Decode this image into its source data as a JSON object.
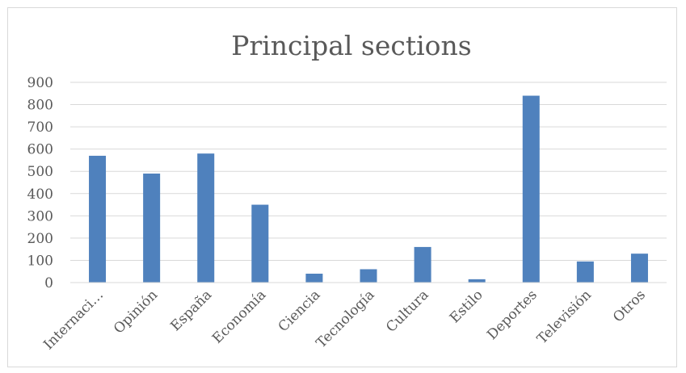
{
  "chart_data": {
    "type": "bar",
    "title": "Principal sections",
    "categories": [
      "Internaci…",
      "Opinión",
      "España",
      "Economía",
      "Ciencia",
      "Tecnología",
      "Cultura",
      "Estilo",
      "Deportes",
      "Televisión",
      "Otros"
    ],
    "values": [
      570,
      490,
      580,
      350,
      40,
      60,
      160,
      15,
      840,
      95,
      130
    ],
    "ylim": [
      0,
      900
    ],
    "yticks": [
      "0",
      "100",
      "200",
      "300",
      "400",
      "500",
      "600",
      "700",
      "800",
      "900"
    ],
    "grid": true,
    "legend": "none",
    "xlabel": "",
    "ylabel": ""
  },
  "colors": {
    "bar": "#4f81bd",
    "grid": "#d9d9d9",
    "text": "#595959"
  }
}
